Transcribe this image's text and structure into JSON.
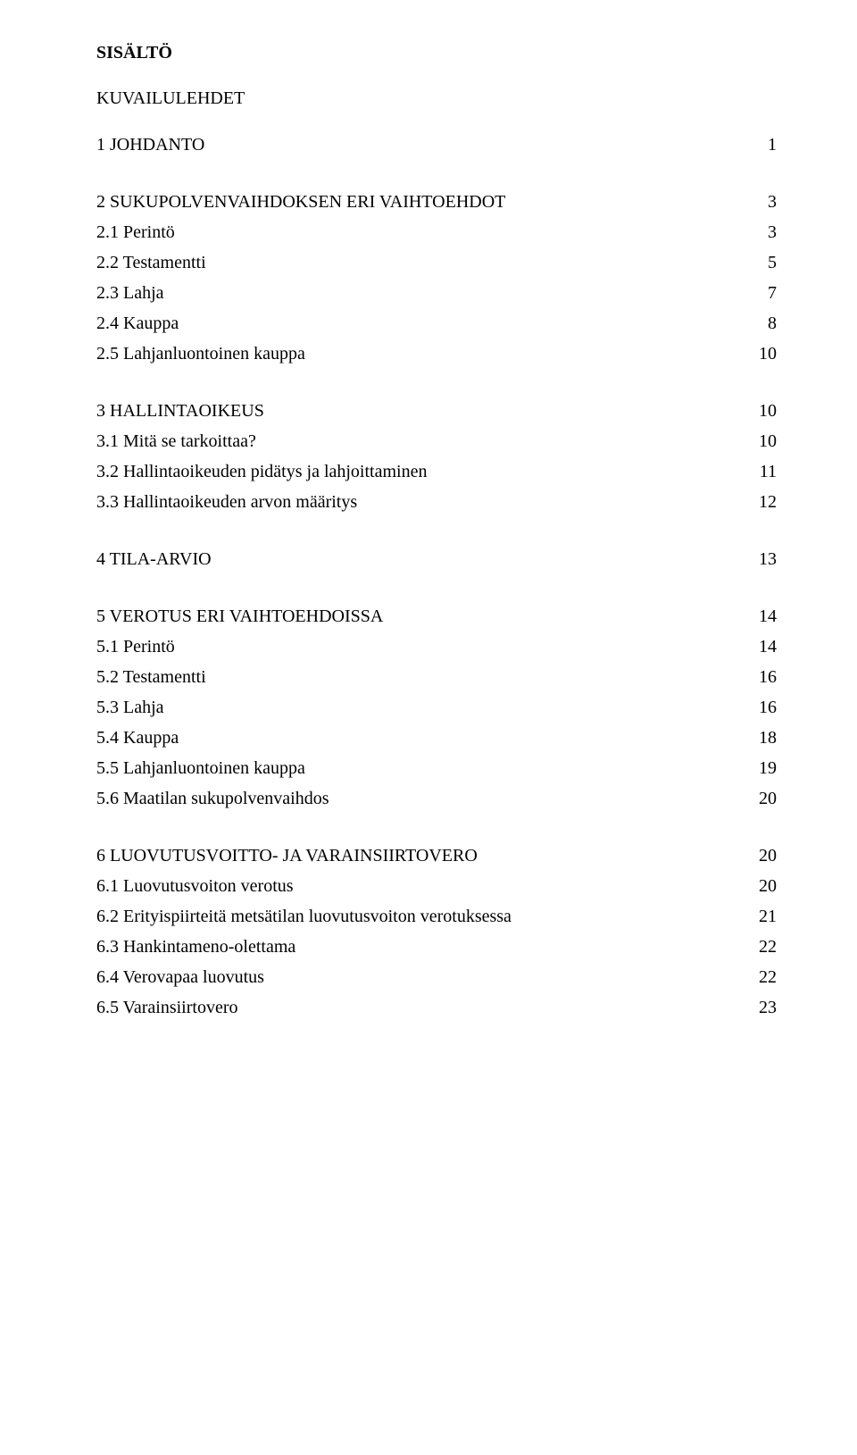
{
  "heading": "SISÄLTÖ",
  "subheading": "KUVAILULEHDET",
  "toc": [
    {
      "type": "entry",
      "level": 1,
      "label": "1 JOHDANTO",
      "page": "1"
    },
    {
      "type": "gap"
    },
    {
      "type": "entry",
      "level": 1,
      "label": "2 SUKUPOLVENVAIHDOKSEN ERI VAIHTOEHDOT",
      "page": "3"
    },
    {
      "type": "entry",
      "level": 2,
      "label": "2.1 Perintö",
      "page": "3"
    },
    {
      "type": "entry",
      "level": 2,
      "label": "2.2 Testamentti",
      "page": "5"
    },
    {
      "type": "entry",
      "level": 2,
      "label": "2.3 Lahja",
      "page": "7"
    },
    {
      "type": "entry",
      "level": 2,
      "label": "2.4 Kauppa",
      "page": "8"
    },
    {
      "type": "entry",
      "level": 2,
      "label": "2.5 Lahjanluontoinen kauppa",
      "page": "10"
    },
    {
      "type": "gap"
    },
    {
      "type": "entry",
      "level": 1,
      "label": "3 HALLINTAOIKEUS",
      "page": "10"
    },
    {
      "type": "entry",
      "level": 2,
      "label": "3.1 Mitä se tarkoittaa?",
      "page": "10"
    },
    {
      "type": "entry",
      "level": 2,
      "label": "3.2 Hallintaoikeuden pidätys ja lahjoittaminen",
      "page": "11"
    },
    {
      "type": "entry",
      "level": 2,
      "label": "3.3 Hallintaoikeuden arvon määritys",
      "page": "12"
    },
    {
      "type": "gap"
    },
    {
      "type": "entry",
      "level": 1,
      "label": "4 TILA-ARVIO",
      "page": "13"
    },
    {
      "type": "gap"
    },
    {
      "type": "entry",
      "level": 1,
      "label": "5 VEROTUS ERI VAIHTOEHDOISSA",
      "page": "14"
    },
    {
      "type": "entry",
      "level": 2,
      "label": "5.1 Perintö",
      "page": "14"
    },
    {
      "type": "entry",
      "level": 2,
      "label": "5.2 Testamentti",
      "page": "16"
    },
    {
      "type": "entry",
      "level": 2,
      "label": "5.3 Lahja",
      "page": "16"
    },
    {
      "type": "entry",
      "level": 2,
      "label": "5.4 Kauppa",
      "page": "18"
    },
    {
      "type": "entry",
      "level": 2,
      "label": "5.5 Lahjanluontoinen kauppa",
      "page": "19"
    },
    {
      "type": "entry",
      "level": 2,
      "label": "5.6 Maatilan sukupolvenvaihdos",
      "page": "20"
    },
    {
      "type": "gap"
    },
    {
      "type": "entry",
      "level": 1,
      "label": "6 LUOVUTUSVOITTO- JA VARAINSIIRTOVERO",
      "page": "20"
    },
    {
      "type": "entry",
      "level": 2,
      "label": "6.1 Luovutusvoiton verotus",
      "page": "20"
    },
    {
      "type": "entry",
      "level": 2,
      "label": "6.2 Erityispiirteitä metsätilan luovutusvoiton verotuksessa",
      "page": "21"
    },
    {
      "type": "entry",
      "level": 2,
      "label": "6.3 Hankintameno-olettama",
      "page": "22"
    },
    {
      "type": "entry",
      "level": 2,
      "label": "6.4 Verovapaa luovutus",
      "page": "22"
    },
    {
      "type": "entry",
      "level": 2,
      "label": "6.5 Varainsiirtovero",
      "page": "23"
    }
  ]
}
